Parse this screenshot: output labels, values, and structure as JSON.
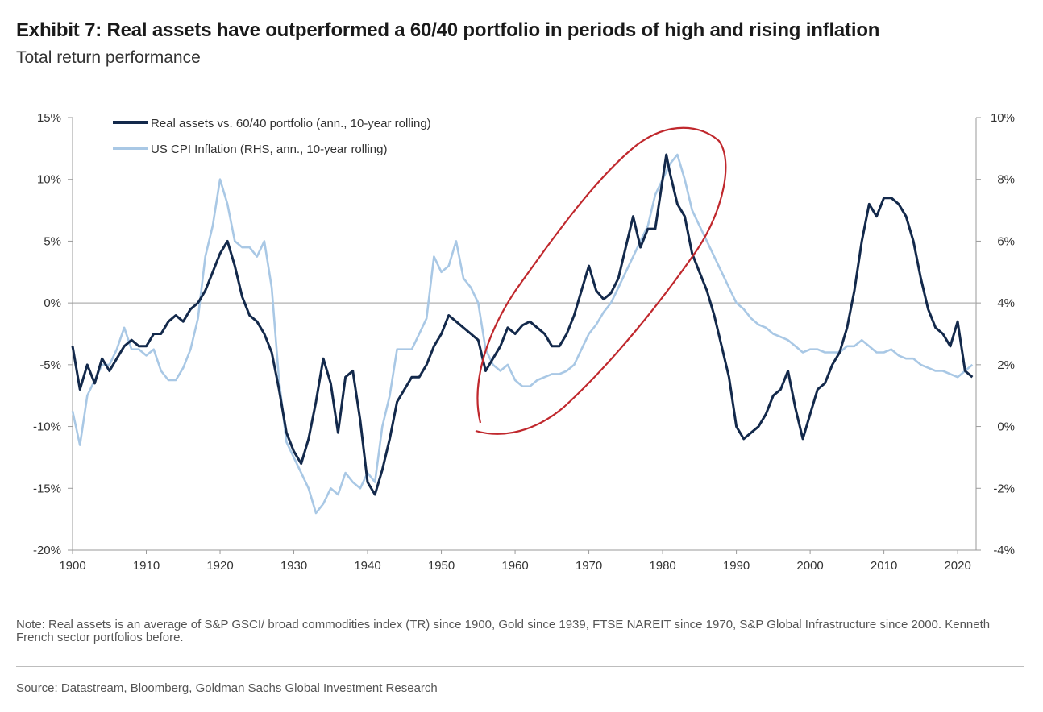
{
  "header": {
    "title": "Exhibit 7: Real assets have outperformed a 60/40 portfolio in periods of high and rising inflation",
    "subtitle": "Total return performance"
  },
  "footer": {
    "note": "Note: Real assets is an average of S&P GSCI/ broad commodities index (TR) since 1900, Gold since 1939, FTSE NAREIT since 1970, S&P Global Infrastructure since 2000. Kenneth French sector portfolios before.",
    "source": "Source: Datastream, Bloomberg, Goldman Sachs Global Investment Research"
  },
  "colors": {
    "real_assets": "#13294b",
    "cpi": "#a9c8e5",
    "annotation": "#c0282d",
    "axis": "#9a9a9a",
    "zero_line": "#b0b0b0"
  },
  "chart_data": {
    "type": "line",
    "x_ticks": [
      "1900",
      "1910",
      "1920",
      "1930",
      "1940",
      "1950",
      "1960",
      "1970",
      "1980",
      "1990",
      "2000",
      "2010",
      "2020"
    ],
    "xlim": [
      1900,
      2022.5
    ],
    "y_left": {
      "lim": [
        -20,
        15
      ],
      "tick_values": [
        15,
        10,
        5,
        0,
        -5,
        -10,
        -15,
        -20
      ],
      "tick_labels": [
        "15%",
        "10%",
        "5%",
        "0%",
        "-5%",
        "-10%",
        "-15%",
        "-20%"
      ]
    },
    "y_right": {
      "lim": [
        -4,
        10
      ],
      "tick_values": [
        10,
        8,
        6,
        4,
        2,
        0,
        -2,
        -4
      ],
      "tick_labels": [
        "10%",
        "8%",
        "6%",
        "4%",
        "2%",
        "0%",
        "-2%",
        "-4%"
      ]
    },
    "legend_position": "top-left",
    "zero_line": true,
    "annotation": "red hand-drawn ellipse around 1955-1985",
    "series": [
      {
        "name": "Real assets vs. 60/40 portfolio (ann., 10-year rolling)",
        "axis": "left",
        "points": [
          [
            1900,
            -3.5
          ],
          [
            1901,
            -7.0
          ],
          [
            1902,
            -5.0
          ],
          [
            1903,
            -6.5
          ],
          [
            1904,
            -4.5
          ],
          [
            1905,
            -5.5
          ],
          [
            1906,
            -4.5
          ],
          [
            1907,
            -3.5
          ],
          [
            1908,
            -3.0
          ],
          [
            1909,
            -3.5
          ],
          [
            1910,
            -3.5
          ],
          [
            1911,
            -2.5
          ],
          [
            1912,
            -2.5
          ],
          [
            1913,
            -1.5
          ],
          [
            1914,
            -1.0
          ],
          [
            1915,
            -1.5
          ],
          [
            1916,
            -0.5
          ],
          [
            1917,
            0.0
          ],
          [
            1918,
            1.0
          ],
          [
            1919,
            2.5
          ],
          [
            1920,
            4.0
          ],
          [
            1921,
            5.0
          ],
          [
            1922,
            3.0
          ],
          [
            1923,
            0.5
          ],
          [
            1924,
            -1.0
          ],
          [
            1925,
            -1.5
          ],
          [
            1926,
            -2.5
          ],
          [
            1927,
            -4.0
          ],
          [
            1928,
            -7.0
          ],
          [
            1929,
            -10.5
          ],
          [
            1930,
            -12.0
          ],
          [
            1931,
            -13.0
          ],
          [
            1932,
            -11.0
          ],
          [
            1933,
            -8.0
          ],
          [
            1934,
            -4.5
          ],
          [
            1935,
            -6.5
          ],
          [
            1936,
            -10.5
          ],
          [
            1937,
            -6.0
          ],
          [
            1938,
            -5.5
          ],
          [
            1939,
            -9.5
          ],
          [
            1940,
            -14.5
          ],
          [
            1941,
            -15.5
          ],
          [
            1942,
            -13.5
          ],
          [
            1943,
            -11.0
          ],
          [
            1944,
            -8.0
          ],
          [
            1945,
            -7.0
          ],
          [
            1946,
            -6.0
          ],
          [
            1947,
            -6.0
          ],
          [
            1948,
            -5.0
          ],
          [
            1949,
            -3.5
          ],
          [
            1950,
            -2.5
          ],
          [
            1951,
            -1.0
          ],
          [
            1952,
            -1.5
          ],
          [
            1953,
            -2.0
          ],
          [
            1954,
            -2.5
          ],
          [
            1955,
            -3.0
          ],
          [
            1956,
            -5.5
          ],
          [
            1957,
            -4.5
          ],
          [
            1958,
            -3.5
          ],
          [
            1959,
            -2.0
          ],
          [
            1960,
            -2.5
          ],
          [
            1961,
            -1.8
          ],
          [
            1962,
            -1.5
          ],
          [
            1963,
            -2.0
          ],
          [
            1964,
            -2.5
          ],
          [
            1965,
            -3.5
          ],
          [
            1966,
            -3.5
          ],
          [
            1967,
            -2.5
          ],
          [
            1968,
            -1.0
          ],
          [
            1969,
            1.0
          ],
          [
            1970,
            3.0
          ],
          [
            1971,
            1.0
          ],
          [
            1972,
            0.3
          ],
          [
            1973,
            0.8
          ],
          [
            1974,
            2.0
          ],
          [
            1975,
            4.5
          ],
          [
            1976,
            7.0
          ],
          [
            1977,
            4.5
          ],
          [
            1978,
            6.0
          ],
          [
            1979,
            6.0
          ],
          [
            1980,
            10.0
          ],
          [
            1980.5,
            12.0
          ],
          [
            1981,
            10.5
          ],
          [
            1982,
            8.0
          ],
          [
            1983,
            7.0
          ],
          [
            1984,
            4.0
          ],
          [
            1985,
            2.5
          ],
          [
            1986,
            1.0
          ],
          [
            1987,
            -1.0
          ],
          [
            1988,
            -3.5
          ],
          [
            1989,
            -6.0
          ],
          [
            1990,
            -10.0
          ],
          [
            1991,
            -11.0
          ],
          [
            1992,
            -10.5
          ],
          [
            1993,
            -10.0
          ],
          [
            1994,
            -9.0
          ],
          [
            1995,
            -7.5
          ],
          [
            1996,
            -7.0
          ],
          [
            1997,
            -5.5
          ],
          [
            1998,
            -8.5
          ],
          [
            1999,
            -11.0
          ],
          [
            2000,
            -9.0
          ],
          [
            2001,
            -7.0
          ],
          [
            2002,
            -6.5
          ],
          [
            2003,
            -5.0
          ],
          [
            2004,
            -4.0
          ],
          [
            2005,
            -2.0
          ],
          [
            2006,
            1.0
          ],
          [
            2007,
            5.0
          ],
          [
            2008,
            8.0
          ],
          [
            2009,
            7.0
          ],
          [
            2010,
            8.5
          ],
          [
            2011,
            8.5
          ],
          [
            2012,
            8.0
          ],
          [
            2013,
            7.0
          ],
          [
            2014,
            5.0
          ],
          [
            2015,
            2.0
          ],
          [
            2016,
            -0.5
          ],
          [
            2017,
            -2.0
          ],
          [
            2018,
            -2.5
          ],
          [
            2019,
            -3.5
          ],
          [
            2020,
            -1.5
          ],
          [
            2021,
            -5.5
          ],
          [
            2022,
            -6.0
          ]
        ]
      },
      {
        "name": "US CPI Inflation (RHS, ann., 10-year rolling)",
        "axis": "right",
        "points": [
          [
            1900,
            0.5
          ],
          [
            1901,
            -0.6
          ],
          [
            1902,
            1.0
          ],
          [
            1903,
            1.5
          ],
          [
            1904,
            2.0
          ],
          [
            1905,
            2.0
          ],
          [
            1906,
            2.5
          ],
          [
            1907,
            3.2
          ],
          [
            1908,
            2.5
          ],
          [
            1909,
            2.5
          ],
          [
            1910,
            2.3
          ],
          [
            1911,
            2.5
          ],
          [
            1912,
            1.8
          ],
          [
            1913,
            1.5
          ],
          [
            1914,
            1.5
          ],
          [
            1915,
            1.9
          ],
          [
            1916,
            2.5
          ],
          [
            1917,
            3.5
          ],
          [
            1918,
            5.5
          ],
          [
            1919,
            6.5
          ],
          [
            1920,
            8.0
          ],
          [
            1921,
            7.2
          ],
          [
            1922,
            6.0
          ],
          [
            1923,
            5.8
          ],
          [
            1924,
            5.8
          ],
          [
            1925,
            5.5
          ],
          [
            1926,
            6.0
          ],
          [
            1927,
            4.5
          ],
          [
            1928,
            1.5
          ],
          [
            1929,
            -0.5
          ],
          [
            1930,
            -1.0
          ],
          [
            1931,
            -1.5
          ],
          [
            1932,
            -2.0
          ],
          [
            1933,
            -2.8
          ],
          [
            1934,
            -2.5
          ],
          [
            1935,
            -2.0
          ],
          [
            1936,
            -2.2
          ],
          [
            1937,
            -1.5
          ],
          [
            1938,
            -1.8
          ],
          [
            1939,
            -2.0
          ],
          [
            1940,
            -1.5
          ],
          [
            1941,
            -1.8
          ],
          [
            1942,
            0.0
          ],
          [
            1943,
            1.0
          ],
          [
            1944,
            2.5
          ],
          [
            1945,
            2.5
          ],
          [
            1946,
            2.5
          ],
          [
            1947,
            3.0
          ],
          [
            1948,
            3.5
          ],
          [
            1949,
            5.5
          ],
          [
            1950,
            5.0
          ],
          [
            1951,
            5.2
          ],
          [
            1952,
            6.0
          ],
          [
            1953,
            4.8
          ],
          [
            1954,
            4.5
          ],
          [
            1955,
            4.0
          ],
          [
            1956,
            2.5
          ],
          [
            1957,
            2.0
          ],
          [
            1958,
            1.8
          ],
          [
            1959,
            2.0
          ],
          [
            1960,
            1.5
          ],
          [
            1961,
            1.3
          ],
          [
            1962,
            1.3
          ],
          [
            1963,
            1.5
          ],
          [
            1964,
            1.6
          ],
          [
            1965,
            1.7
          ],
          [
            1966,
            1.7
          ],
          [
            1967,
            1.8
          ],
          [
            1968,
            2.0
          ],
          [
            1969,
            2.5
          ],
          [
            1970,
            3.0
          ],
          [
            1971,
            3.3
          ],
          [
            1972,
            3.7
          ],
          [
            1973,
            4.0
          ],
          [
            1974,
            4.5
          ],
          [
            1975,
            5.0
          ],
          [
            1976,
            5.5
          ],
          [
            1977,
            6.0
          ],
          [
            1978,
            6.5
          ],
          [
            1979,
            7.5
          ],
          [
            1980,
            8.0
          ],
          [
            1981,
            8.5
          ],
          [
            1982,
            8.8
          ],
          [
            1983,
            8.0
          ],
          [
            1984,
            7.0
          ],
          [
            1985,
            6.5
          ],
          [
            1986,
            6.0
          ],
          [
            1987,
            5.5
          ],
          [
            1988,
            5.0
          ],
          [
            1989,
            4.5
          ],
          [
            1990,
            4.0
          ],
          [
            1991,
            3.8
          ],
          [
            1992,
            3.5
          ],
          [
            1993,
            3.3
          ],
          [
            1994,
            3.2
          ],
          [
            1995,
            3.0
          ],
          [
            1996,
            2.9
          ],
          [
            1997,
            2.8
          ],
          [
            1998,
            2.6
          ],
          [
            1999,
            2.4
          ],
          [
            2000,
            2.5
          ],
          [
            2001,
            2.5
          ],
          [
            2002,
            2.4
          ],
          [
            2003,
            2.4
          ],
          [
            2004,
            2.4
          ],
          [
            2005,
            2.6
          ],
          [
            2006,
            2.6
          ],
          [
            2007,
            2.8
          ],
          [
            2008,
            2.6
          ],
          [
            2009,
            2.4
          ],
          [
            2010,
            2.4
          ],
          [
            2011,
            2.5
          ],
          [
            2012,
            2.3
          ],
          [
            2013,
            2.2
          ],
          [
            2014,
            2.2
          ],
          [
            2015,
            2.0
          ],
          [
            2016,
            1.9
          ],
          [
            2017,
            1.8
          ],
          [
            2018,
            1.8
          ],
          [
            2019,
            1.7
          ],
          [
            2020,
            1.6
          ],
          [
            2021,
            1.8
          ],
          [
            2022,
            2.0
          ]
        ]
      }
    ]
  }
}
